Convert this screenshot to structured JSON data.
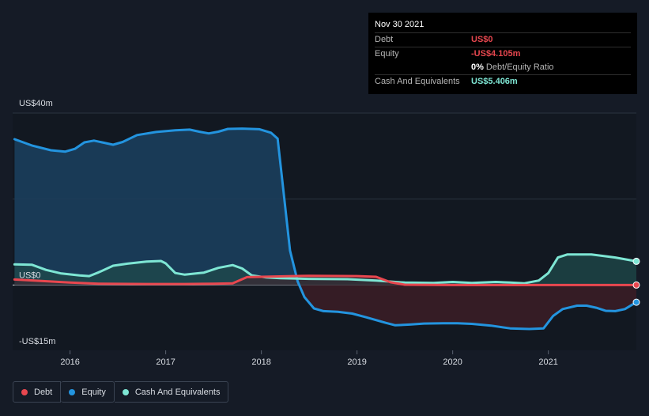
{
  "tooltip": {
    "date": "Nov 30 2021",
    "rows": [
      {
        "label": "Debt",
        "value": "US$0",
        "color": "#e8474f"
      },
      {
        "label": "Equity",
        "value": "-US$4.105m",
        "color": "#e8474f"
      },
      {
        "label": "",
        "value": "0%",
        "sub": "Debt/Equity Ratio",
        "color": "#ffffff"
      },
      {
        "label": "Cash And Equivalents",
        "value": "US$5.406m",
        "color": "#7ee6d4"
      }
    ]
  },
  "legend": [
    {
      "name": "Debt",
      "color": "#e8474f"
    },
    {
      "name": "Equity",
      "color": "#2394df"
    },
    {
      "name": "Cash And Equivalents",
      "color": "#7ee6d4"
    }
  ],
  "chart_data": {
    "type": "area",
    "ylim": [
      -19,
      50
    ],
    "xlim": [
      2015.4,
      2021.92
    ],
    "y_tick_labels": [
      {
        "value": 50,
        "label": "US$40m"
      },
      {
        "value": 0,
        "label": "US$0"
      },
      {
        "value": -16,
        "label": "-US$15m"
      }
    ],
    "gridlines": [
      50,
      25,
      0
    ],
    "x_ticks": [
      {
        "value": 2016,
        "label": "2016"
      },
      {
        "value": 2017,
        "label": "2017"
      },
      {
        "value": 2018,
        "label": "2018"
      },
      {
        "value": 2019,
        "label": "2019"
      },
      {
        "value": 2020,
        "label": "2020"
      },
      {
        "value": 2021,
        "label": "2021"
      }
    ],
    "series": [
      {
        "name": "Equity",
        "color": "#2394df",
        "fill": "#1b3e5c",
        "neg_fill": "#3a1d26",
        "points": [
          [
            2015.42,
            42.4
          ],
          [
            2015.6,
            40.6
          ],
          [
            2015.8,
            39.2
          ],
          [
            2015.95,
            38.8
          ],
          [
            2016.05,
            39.6
          ],
          [
            2016.15,
            41.5
          ],
          [
            2016.25,
            42.0
          ],
          [
            2016.35,
            41.4
          ],
          [
            2016.45,
            40.8
          ],
          [
            2016.55,
            41.6
          ],
          [
            2016.7,
            43.6
          ],
          [
            2016.9,
            44.5
          ],
          [
            2017.1,
            45.0
          ],
          [
            2017.25,
            45.2
          ],
          [
            2017.35,
            44.6
          ],
          [
            2017.45,
            44.1
          ],
          [
            2017.55,
            44.6
          ],
          [
            2017.65,
            45.4
          ],
          [
            2017.8,
            45.5
          ],
          [
            2017.98,
            45.3
          ],
          [
            2018.1,
            44.3
          ],
          [
            2018.17,
            42.6
          ],
          [
            2018.22,
            30.0
          ],
          [
            2018.3,
            10.0
          ],
          [
            2018.38,
            1.0
          ],
          [
            2018.45,
            -3.5
          ],
          [
            2018.55,
            -6.8
          ],
          [
            2018.65,
            -7.6
          ],
          [
            2018.8,
            -7.8
          ],
          [
            2018.95,
            -8.3
          ],
          [
            2019.1,
            -9.4
          ],
          [
            2019.3,
            -11.0
          ],
          [
            2019.4,
            -11.7
          ],
          [
            2019.55,
            -11.5
          ],
          [
            2019.7,
            -11.2
          ],
          [
            2019.9,
            -11.1
          ],
          [
            2020.05,
            -11.1
          ],
          [
            2020.2,
            -11.3
          ],
          [
            2020.4,
            -11.8
          ],
          [
            2020.6,
            -12.6
          ],
          [
            2020.8,
            -12.8
          ],
          [
            2020.95,
            -12.6
          ],
          [
            2021.05,
            -9.0
          ],
          [
            2021.15,
            -7.0
          ],
          [
            2021.3,
            -6.0
          ],
          [
            2021.4,
            -6.0
          ],
          [
            2021.5,
            -6.6
          ],
          [
            2021.6,
            -7.5
          ],
          [
            2021.7,
            -7.6
          ],
          [
            2021.8,
            -7.0
          ],
          [
            2021.92,
            -5.0
          ]
        ]
      },
      {
        "name": "Cash And Equivalents",
        "color": "#7ee6d4",
        "fill": "#1f4a4b",
        "points": [
          [
            2015.42,
            6.0
          ],
          [
            2015.6,
            5.9
          ],
          [
            2015.75,
            4.4
          ],
          [
            2015.9,
            3.4
          ],
          [
            2016.1,
            2.8
          ],
          [
            2016.2,
            2.6
          ],
          [
            2016.3,
            3.7
          ],
          [
            2016.45,
            5.6
          ],
          [
            2016.6,
            6.2
          ],
          [
            2016.8,
            6.8
          ],
          [
            2016.95,
            7.0
          ],
          [
            2017.0,
            6.3
          ],
          [
            2017.1,
            3.5
          ],
          [
            2017.2,
            3.0
          ],
          [
            2017.4,
            3.6
          ],
          [
            2017.55,
            5.0
          ],
          [
            2017.7,
            5.8
          ],
          [
            2017.8,
            4.8
          ],
          [
            2017.9,
            2.8
          ],
          [
            2018.05,
            2.2
          ],
          [
            2018.2,
            2.0
          ],
          [
            2018.5,
            1.8
          ],
          [
            2018.9,
            1.7
          ],
          [
            2019.2,
            1.3
          ],
          [
            2019.5,
            0.7
          ],
          [
            2019.8,
            0.6
          ],
          [
            2020.0,
            0.9
          ],
          [
            2020.2,
            0.6
          ],
          [
            2020.45,
            0.9
          ],
          [
            2020.6,
            0.7
          ],
          [
            2020.75,
            0.5
          ],
          [
            2020.9,
            1.3
          ],
          [
            2021.0,
            3.5
          ],
          [
            2021.1,
            8.0
          ],
          [
            2021.2,
            8.9
          ],
          [
            2021.45,
            8.9
          ],
          [
            2021.7,
            8.0
          ],
          [
            2021.92,
            6.9
          ]
        ]
      },
      {
        "name": "Debt",
        "color": "#e8474f",
        "fill": "#3b2a33",
        "points": [
          [
            2015.42,
            1.6
          ],
          [
            2015.7,
            1.2
          ],
          [
            2016.0,
            0.7
          ],
          [
            2016.3,
            0.4
          ],
          [
            2016.8,
            0.3
          ],
          [
            2017.2,
            0.3
          ],
          [
            2017.5,
            0.4
          ],
          [
            2017.7,
            0.5
          ],
          [
            2017.85,
            2.3
          ],
          [
            2018.0,
            2.4
          ],
          [
            2018.5,
            2.7
          ],
          [
            2019.0,
            2.6
          ],
          [
            2019.2,
            2.4
          ],
          [
            2019.35,
            0.8
          ],
          [
            2019.5,
            0.1
          ],
          [
            2020.0,
            0.0
          ],
          [
            2021.0,
            0.0
          ],
          [
            2021.92,
            0.0
          ]
        ]
      }
    ]
  }
}
